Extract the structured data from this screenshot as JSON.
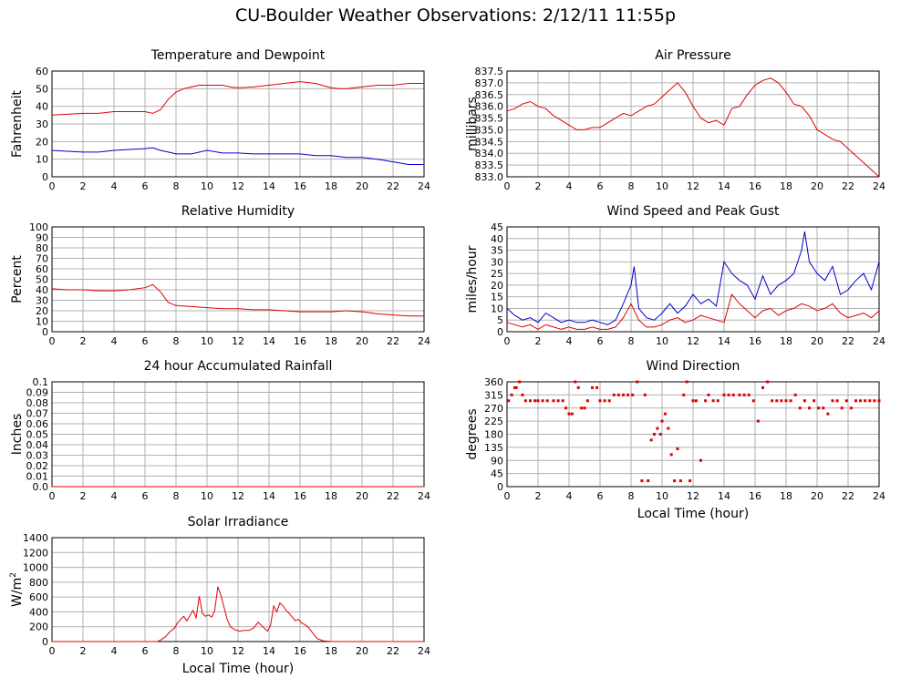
{
  "title": "CU-Boulder Weather Observations: 2/12/11 11:55p",
  "chart_data": [
    {
      "id": "temp",
      "type": "line",
      "title": "Temperature and Dewpoint",
      "ylabel": "Fahrenheit",
      "xlabel": "",
      "xlim": [
        0,
        24
      ],
      "ylim": [
        0,
        60
      ],
      "xticks": [
        0,
        2,
        4,
        6,
        8,
        10,
        12,
        14,
        16,
        18,
        20,
        22,
        24
      ],
      "yticks": [
        "0",
        "10",
        "20",
        "30",
        "40",
        "50",
        "60"
      ],
      "series": [
        {
          "name": "Temperature",
          "color": "#e00000",
          "x": [
            0,
            1,
            2,
            3,
            4,
            5,
            6,
            6.5,
            7,
            7.5,
            8,
            8.5,
            9,
            9.5,
            10,
            10.5,
            11,
            11.5,
            12,
            13,
            14,
            15,
            16,
            17,
            18,
            18.5,
            19,
            20,
            21,
            22,
            23,
            24
          ],
          "y": [
            35,
            35.5,
            36,
            36,
            37,
            37,
            37,
            36,
            38,
            44,
            48,
            50,
            51,
            52,
            52,
            52,
            52,
            51,
            50.5,
            51,
            52,
            53,
            54,
            53,
            50.5,
            50,
            50,
            51,
            52,
            52,
            53,
            53
          ]
        },
        {
          "name": "Dewpoint",
          "color": "#0000cc",
          "x": [
            0,
            1,
            2,
            3,
            4,
            5,
            6,
            6.5,
            7,
            7.5,
            8,
            9,
            10,
            11,
            12,
            13,
            14,
            15,
            16,
            17,
            18,
            19,
            20,
            21,
            22,
            23,
            24
          ],
          "y": [
            15,
            14.5,
            14,
            14,
            15,
            15.5,
            16,
            16.5,
            15,
            14,
            13,
            13,
            15,
            13.5,
            13.5,
            13,
            13,
            13,
            13,
            12,
            12,
            11,
            11,
            10,
            8.5,
            7,
            7
          ]
        }
      ]
    },
    {
      "id": "pressure",
      "type": "line",
      "title": "Air Pressure",
      "ylabel": "millibars",
      "xlabel": "",
      "xlim": [
        0,
        24
      ],
      "ylim": [
        833.0,
        837.5
      ],
      "xticks": [
        0,
        2,
        4,
        6,
        8,
        10,
        12,
        14,
        16,
        18,
        20,
        22,
        24
      ],
      "yticks": [
        "833.0",
        "833.5",
        "834.0",
        "834.5",
        "835.0",
        "835.5",
        "836.0",
        "836.5",
        "837.0",
        "837.5"
      ],
      "series": [
        {
          "name": "Pressure",
          "color": "#e00000",
          "x": [
            0,
            0.5,
            1,
            1.5,
            2,
            2.5,
            3,
            3.5,
            4,
            4.5,
            5,
            5.5,
            6,
            6.5,
            7,
            7.5,
            8,
            8.5,
            9,
            9.5,
            10,
            10.5,
            11,
            11.5,
            12,
            12.5,
            13,
            13.5,
            14,
            14.5,
            15,
            15.5,
            16,
            16.5,
            17,
            17.5,
            18,
            18.5,
            19,
            19.5,
            20,
            20.5,
            21,
            21.5,
            22,
            22.5,
            23,
            23.5,
            24
          ],
          "y": [
            835.8,
            835.9,
            836.1,
            836.2,
            836.0,
            835.9,
            835.6,
            835.4,
            835.2,
            835.0,
            835.0,
            835.1,
            835.1,
            835.3,
            835.5,
            835.7,
            835.6,
            835.8,
            836.0,
            836.1,
            836.4,
            836.7,
            837.0,
            836.6,
            836.0,
            835.5,
            835.3,
            835.4,
            835.2,
            835.9,
            836.0,
            836.5,
            836.9,
            837.1,
            837.2,
            837.0,
            836.6,
            836.1,
            836.0,
            835.6,
            835.0,
            834.8,
            834.6,
            834.5,
            834.2,
            833.9,
            833.6,
            833.3,
            833.0
          ]
        }
      ]
    },
    {
      "id": "humidity",
      "type": "line",
      "title": "Relative Humidity",
      "ylabel": "Percent",
      "xlabel": "",
      "xlim": [
        0,
        24
      ],
      "ylim": [
        0,
        100
      ],
      "xticks": [
        0,
        2,
        4,
        6,
        8,
        10,
        12,
        14,
        16,
        18,
        20,
        22,
        24
      ],
      "yticks": [
        "0",
        "10",
        "20",
        "30",
        "40",
        "50",
        "60",
        "70",
        "80",
        "90",
        "100"
      ],
      "series": [
        {
          "name": "Relative Humidity",
          "color": "#e00000",
          "x": [
            0,
            1,
            2,
            3,
            4,
            5,
            6,
            6.5,
            7,
            7.5,
            8,
            9,
            10,
            11,
            12,
            13,
            14,
            15,
            16,
            17,
            18,
            19,
            20,
            21,
            22,
            23,
            24
          ],
          "y": [
            41,
            40,
            40,
            39,
            39,
            40,
            42,
            45,
            38,
            28,
            25,
            24,
            23,
            22,
            22,
            21,
            21,
            20,
            19,
            19,
            19,
            20,
            19,
            17,
            16,
            15,
            15
          ]
        }
      ]
    },
    {
      "id": "wind",
      "type": "line",
      "title": "Wind Speed and Peak Gust",
      "ylabel": "miles/hour",
      "xlabel": "",
      "xlim": [
        0,
        24
      ],
      "ylim": [
        0,
        45
      ],
      "xticks": [
        0,
        2,
        4,
        6,
        8,
        10,
        12,
        14,
        16,
        18,
        20,
        22,
        24
      ],
      "yticks": [
        "0",
        "5",
        "10",
        "15",
        "20",
        "25",
        "30",
        "35",
        "40",
        "45"
      ],
      "series": [
        {
          "name": "Peak Gust",
          "color": "#0000cc",
          "x": [
            0,
            0.5,
            1,
            1.5,
            2,
            2.5,
            3,
            3.5,
            4,
            4.5,
            5,
            5.5,
            6,
            6.5,
            7,
            7.5,
            8,
            8.2,
            8.5,
            9,
            9.5,
            10,
            10.5,
            11,
            11.5,
            12,
            12.5,
            13,
            13.5,
            14,
            14.5,
            15,
            15.5,
            16,
            16.5,
            17,
            17.5,
            18,
            18.5,
            19,
            19.2,
            19.5,
            20,
            20.5,
            21,
            21.5,
            22,
            22.5,
            23,
            23.5,
            24
          ],
          "y": [
            10,
            7,
            5,
            6,
            4,
            8,
            6,
            4,
            5,
            4,
            4,
            5,
            4,
            3,
            5,
            12,
            20,
            28,
            10,
            6,
            5,
            8,
            12,
            8,
            11,
            16,
            12,
            14,
            11,
            30,
            25,
            22,
            20,
            14,
            24,
            16,
            20,
            22,
            25,
            35,
            43,
            30,
            25,
            22,
            28,
            16,
            18,
            22,
            25,
            18,
            30
          ]
        },
        {
          "name": "Wind Speed",
          "color": "#e00000",
          "x": [
            0,
            0.5,
            1,
            1.5,
            2,
            2.5,
            3,
            3.5,
            4,
            4.5,
            5,
            5.5,
            6,
            6.5,
            7,
            7.5,
            8,
            8.5,
            9,
            9.5,
            10,
            10.5,
            11,
            11.5,
            12,
            12.5,
            13,
            13.5,
            14,
            14.5,
            15,
            15.5,
            16,
            16.5,
            17,
            17.5,
            18,
            18.5,
            19,
            19.5,
            20,
            20.5,
            21,
            21.5,
            22,
            22.5,
            23,
            23.5,
            24
          ],
          "y": [
            4,
            3,
            2,
            3,
            1,
            3,
            2,
            1,
            2,
            1,
            1,
            2,
            1,
            1,
            2,
            6,
            12,
            5,
            2,
            2,
            3,
            5,
            6,
            4,
            5,
            7,
            6,
            5,
            4,
            16,
            12,
            9,
            6,
            9,
            10,
            7,
            9,
            10,
            12,
            11,
            9,
            10,
            12,
            8,
            6,
            7,
            8,
            6,
            9
          ]
        }
      ]
    },
    {
      "id": "rain",
      "type": "line",
      "title": "24 hour Accumulated Rainfall",
      "ylabel": "Inches",
      "xlabel": "",
      "xlim": [
        0,
        24
      ],
      "ylim": [
        0,
        0.1
      ],
      "xticks": [
        0,
        2,
        4,
        6,
        8,
        10,
        12,
        14,
        16,
        18,
        20,
        22,
        24
      ],
      "yticks": [
        "0.0",
        "0.01",
        "0.02",
        "0.03",
        "0.04",
        "0.05",
        "0.06",
        "0.07",
        "0.08",
        "0.09",
        "0.1"
      ],
      "series": [
        {
          "name": "Rainfall",
          "color": "#e00000",
          "x": [
            0,
            24
          ],
          "y": [
            0,
            0
          ]
        }
      ]
    },
    {
      "id": "winddir",
      "type": "scatter",
      "title": "Wind Direction",
      "ylabel": "degrees",
      "xlabel": "Local Time (hour)",
      "xlim": [
        0,
        24
      ],
      "ylim": [
        0,
        360
      ],
      "xticks": [
        0,
        2,
        4,
        6,
        8,
        10,
        12,
        14,
        16,
        18,
        20,
        22,
        24
      ],
      "yticks": [
        "0",
        "45",
        "90",
        "135",
        "180",
        "225",
        "270",
        "315",
        "360"
      ],
      "series": [
        {
          "name": "Wind Direction",
          "color": "#e00000",
          "x": [
            0.1,
            0.3,
            0.5,
            0.6,
            0.8,
            1.0,
            1.2,
            1.5,
            1.8,
            2.0,
            2.3,
            2.6,
            3.0,
            3.3,
            3.6,
            3.8,
            4.0,
            4.2,
            4.4,
            4.6,
            4.8,
            5.0,
            5.2,
            5.5,
            5.8,
            6.0,
            6.3,
            6.6,
            6.9,
            7.2,
            7.5,
            7.8,
            8.1,
            8.4,
            8.7,
            8.9,
            9.1,
            9.3,
            9.5,
            9.7,
            9.9,
            10.0,
            10.2,
            10.4,
            10.6,
            10.8,
            11.0,
            11.2,
            11.4,
            11.6,
            11.8,
            12.0,
            12.2,
            12.5,
            12.8,
            13.0,
            13.3,
            13.6,
            14.0,
            14.3,
            14.6,
            15.0,
            15.3,
            15.6,
            15.9,
            16.2,
            16.5,
            16.8,
            17.1,
            17.4,
            17.7,
            18.0,
            18.3,
            18.6,
            18.9,
            19.2,
            19.5,
            19.8,
            20.1,
            20.4,
            20.7,
            21.0,
            21.3,
            21.6,
            21.9,
            22.2,
            22.5,
            22.8,
            23.1,
            23.4,
            23.7,
            24.0
          ],
          "y": [
            295,
            315,
            340,
            340,
            360,
            315,
            295,
            295,
            295,
            295,
            295,
            295,
            295,
            295,
            295,
            270,
            250,
            250,
            360,
            340,
            270,
            270,
            295,
            340,
            340,
            295,
            295,
            295,
            315,
            315,
            315,
            315,
            315,
            360,
            20,
            315,
            20,
            160,
            180,
            200,
            180,
            225,
            250,
            200,
            110,
            20,
            130,
            20,
            315,
            360,
            20,
            295,
            295,
            90,
            295,
            315,
            295,
            295,
            315,
            315,
            315,
            315,
            315,
            315,
            295,
            225,
            340,
            360,
            295,
            295,
            295,
            295,
            295,
            315,
            270,
            295,
            270,
            295,
            270,
            270,
            250,
            295,
            295,
            270,
            295,
            270,
            295,
            295,
            295,
            295,
            295,
            295
          ]
        }
      ]
    },
    {
      "id": "solar",
      "type": "area",
      "title": "Solar Irradiance",
      "ylabel": "W/m",
      "ylabel_sup": "2",
      "xlabel": "Local Time (hour)",
      "xlim": [
        0,
        24
      ],
      "ylim": [
        0,
        1400
      ],
      "xticks": [
        0,
        2,
        4,
        6,
        8,
        10,
        12,
        14,
        16,
        18,
        20,
        22,
        24
      ],
      "yticks": [
        "0",
        "200",
        "400",
        "600",
        "800",
        "1000",
        "1200",
        "1400"
      ],
      "series": [
        {
          "name": "Solar Irradiance",
          "color": "#e00000",
          "x": [
            0,
            6.8,
            7,
            7.3,
            7.6,
            7.9,
            8.1,
            8.3,
            8.5,
            8.7,
            8.9,
            9.1,
            9.3,
            9.5,
            9.7,
            9.9,
            10.1,
            10.3,
            10.5,
            10.7,
            10.9,
            11.1,
            11.3,
            11.5,
            11.8,
            12.1,
            12.4,
            12.7,
            13.0,
            13.3,
            13.6,
            13.9,
            14.1,
            14.3,
            14.5,
            14.7,
            14.9,
            15.1,
            15.3,
            15.5,
            15.7,
            15.9,
            16.1,
            16.3,
            16.5,
            16.8,
            17.1,
            17.5,
            18,
            24
          ],
          "y": [
            0,
            0,
            20,
            60,
            130,
            180,
            250,
            300,
            340,
            280,
            350,
            420,
            320,
            610,
            380,
            340,
            360,
            330,
            420,
            740,
            620,
            460,
            300,
            200,
            160,
            140,
            150,
            150,
            180,
            260,
            200,
            140,
            220,
            480,
            400,
            520,
            480,
            420,
            380,
            330,
            280,
            300,
            250,
            230,
            200,
            120,
            40,
            10,
            0,
            0
          ]
        }
      ]
    }
  ]
}
